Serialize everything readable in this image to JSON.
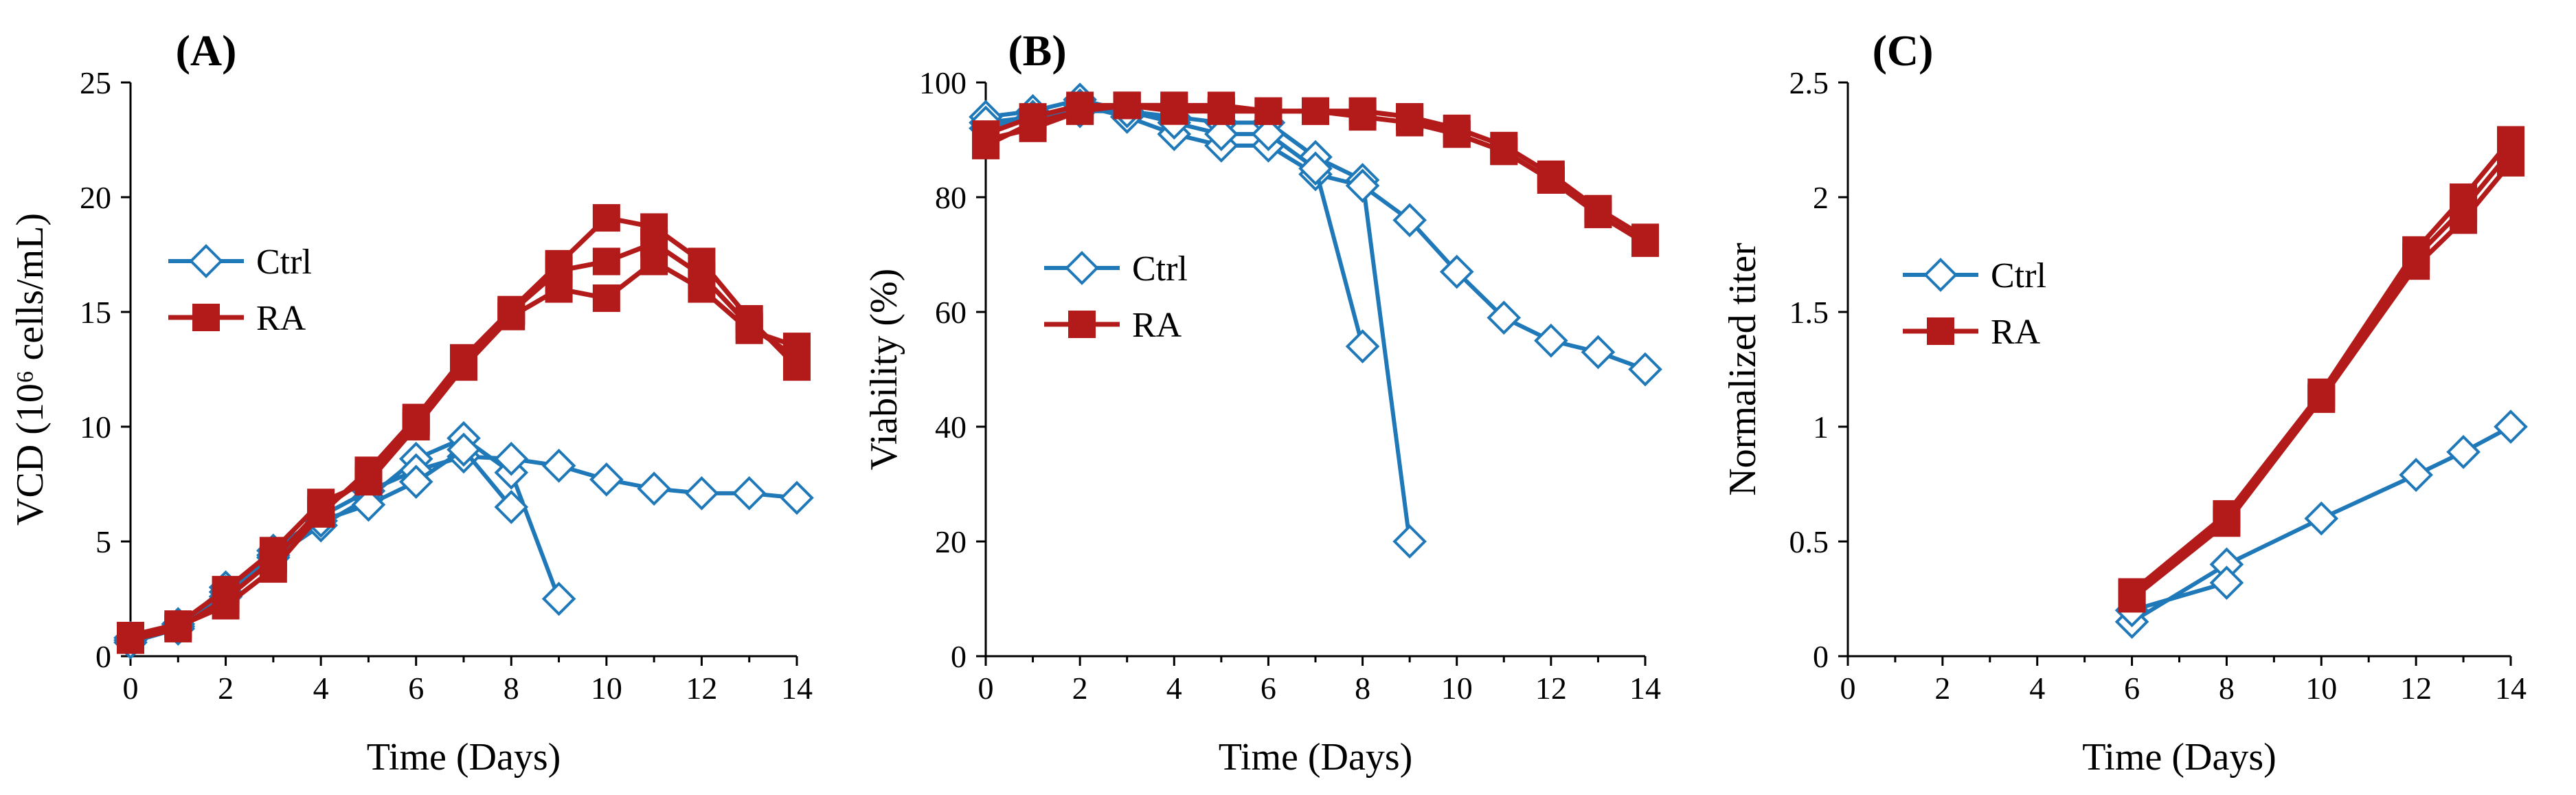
{
  "colors": {
    "ctrl": "#1f78b8",
    "ra": "#b31b1b",
    "axis": "#000000"
  },
  "chart_data": [
    {
      "type": "line",
      "title": "(A)",
      "xlabel": "Time (Days)",
      "ylabel": "VCD (10⁶ cells/mL)",
      "xlim": [
        0,
        14
      ],
      "ylim": [
        0,
        25
      ],
      "xticks": [
        0,
        2,
        4,
        6,
        8,
        10,
        12,
        14
      ],
      "yticks": [
        0,
        5,
        10,
        15,
        20,
        25
      ],
      "minor_x": true,
      "legend": [
        "Ctrl",
        "RA"
      ],
      "legend_position": "left-middle",
      "series": [
        {
          "name": "Ctrl",
          "color_key": "ctrl",
          "marker": "diamond",
          "x": [
            0,
            1,
            2,
            3,
            4,
            5,
            6,
            7,
            8,
            9
          ],
          "y": [
            0.7,
            1.3,
            3.0,
            4.3,
            5.7,
            6.9,
            8.6,
            9.5,
            8.0,
            2.5
          ]
        },
        {
          "name": "Ctrl",
          "color_key": "ctrl",
          "marker": "diamond",
          "x": [
            0,
            1,
            2,
            3,
            4,
            5,
            6,
            7,
            8,
            9,
            10,
            11,
            12,
            13,
            14
          ],
          "y": [
            0.8,
            1.4,
            2.6,
            4.6,
            6.1,
            7.2,
            8.1,
            8.7,
            8.6,
            8.3,
            7.7,
            7.3,
            7.1,
            7.1,
            6.9
          ]
        },
        {
          "name": "Ctrl",
          "color_key": "ctrl",
          "marker": "diamond",
          "x": [
            0,
            1,
            2,
            3,
            4,
            5,
            6,
            7,
            8
          ],
          "y": [
            0.6,
            1.2,
            2.8,
            4.4,
            5.9,
            6.6,
            7.6,
            9.0,
            6.5
          ]
        },
        {
          "name": "RA",
          "color_key": "ra",
          "marker": "square",
          "x": [
            0,
            1,
            2,
            3,
            4,
            5,
            6,
            7,
            8,
            9,
            10,
            11,
            12,
            13,
            14
          ],
          "y": [
            0.8,
            1.3,
            2.2,
            3.8,
            6.2,
            8.1,
            10.4,
            13.0,
            15.1,
            17.1,
            19.1,
            18.7,
            17.2,
            14.7,
            12.6
          ]
        },
        {
          "name": "RA",
          "color_key": "ra",
          "marker": "square",
          "x": [
            0,
            1,
            2,
            3,
            4,
            5,
            6,
            7,
            8,
            9,
            10,
            11,
            12,
            13,
            14
          ],
          "y": [
            0.9,
            1.4,
            2.9,
            4.6,
            6.7,
            7.6,
            10.0,
            12.6,
            14.8,
            16.0,
            15.6,
            17.2,
            16.0,
            14.2,
            13.5
          ]
        },
        {
          "name": "RA",
          "color_key": "ra",
          "marker": "square",
          "x": [
            0,
            1,
            2,
            3,
            4,
            5,
            6,
            7,
            8,
            9,
            10,
            11,
            12,
            13,
            14
          ],
          "y": [
            0.7,
            1.2,
            2.5,
            4.2,
            6.4,
            7.8,
            10.2,
            12.8,
            15.0,
            16.8,
            17.2,
            18.0,
            16.6,
            14.4,
            13.0
          ]
        }
      ]
    },
    {
      "type": "line",
      "title": "(B)",
      "xlabel": "Time (Days)",
      "ylabel": "Viability (%)",
      "xlim": [
        0,
        14
      ],
      "ylim": [
        0,
        100
      ],
      "xticks": [
        0,
        2,
        4,
        6,
        8,
        10,
        12,
        14
      ],
      "yticks": [
        0,
        20,
        40,
        60,
        80,
        100
      ],
      "minor_x": true,
      "legend": [
        "Ctrl",
        "RA"
      ],
      "legend_position": "left-middle",
      "series": [
        {
          "name": "Ctrl",
          "color_key": "ctrl",
          "marker": "diamond",
          "x": [
            0,
            1,
            2,
            3,
            4,
            5,
            6,
            7,
            8,
            9
          ],
          "y": [
            94,
            95,
            97,
            95,
            94,
            93,
            93,
            87,
            83,
            20
          ]
        },
        {
          "name": "Ctrl",
          "color_key": "ctrl",
          "marker": "diamond",
          "x": [
            0,
            1,
            2,
            3,
            4,
            5,
            6,
            7,
            8,
            9,
            10,
            11,
            12,
            13,
            14
          ],
          "y": [
            92,
            94,
            96,
            94,
            91,
            89,
            89,
            84,
            82,
            76,
            67,
            59,
            55,
            53,
            50
          ]
        },
        {
          "name": "Ctrl",
          "color_key": "ctrl",
          "marker": "diamond",
          "x": [
            0,
            1,
            2,
            3,
            4,
            5,
            6,
            7,
            8
          ],
          "y": [
            93,
            94,
            95,
            95,
            93,
            91,
            91,
            85,
            54
          ]
        },
        {
          "name": "RA",
          "color_key": "ra",
          "marker": "square",
          "x": [
            0,
            1,
            2,
            3,
            4,
            5,
            6,
            7,
            8,
            9,
            10,
            11,
            12,
            13,
            14
          ],
          "y": [
            90,
            92,
            95,
            96,
            96,
            95,
            95,
            95,
            95,
            94,
            91,
            88,
            83,
            77,
            72
          ]
        },
        {
          "name": "RA",
          "color_key": "ra",
          "marker": "square",
          "x": [
            0,
            1,
            2,
            3,
            4,
            5,
            6,
            7,
            8,
            9,
            10,
            11,
            12,
            13,
            14
          ],
          "y": [
            91,
            94,
            96,
            96,
            95,
            95,
            95,
            95,
            95,
            94,
            92,
            89,
            84,
            78,
            73
          ]
        },
        {
          "name": "RA",
          "color_key": "ra",
          "marker": "square",
          "x": [
            0,
            1,
            2,
            3,
            4,
            5,
            6,
            7,
            8,
            9,
            10,
            11,
            12,
            13,
            14
          ],
          "y": [
            89,
            93,
            95,
            96,
            96,
            96,
            95,
            95,
            94,
            93,
            91,
            88,
            83,
            77,
            72
          ]
        }
      ]
    },
    {
      "type": "line",
      "title": "(C)",
      "xlabel": "Time (Days)",
      "ylabel": "Normalized titer",
      "xlim": [
        0,
        14
      ],
      "ylim": [
        0,
        2.5
      ],
      "xticks": [
        0,
        2,
        4,
        6,
        8,
        10,
        12,
        14
      ],
      "yticks": [
        0,
        0.5,
        1,
        1.5,
        2,
        2.5
      ],
      "minor_x": true,
      "legend": [
        "Ctrl",
        "RA"
      ],
      "legend_position": "left-middle",
      "series": [
        {
          "name": "Ctrl",
          "color_key": "ctrl",
          "marker": "diamond",
          "x": [
            6,
            8,
            10,
            12,
            13,
            14
          ],
          "y": [
            0.15,
            0.4,
            0.6,
            0.79,
            0.89,
            1.0
          ]
        },
        {
          "name": "Ctrl",
          "color_key": "ctrl",
          "marker": "diamond",
          "x": [
            6,
            8
          ],
          "y": [
            0.2,
            0.32
          ]
        },
        {
          "name": "RA",
          "color_key": "ra",
          "marker": "square",
          "x": [
            6,
            8,
            10,
            12,
            13,
            14
          ],
          "y": [
            0.25,
            0.58,
            1.12,
            1.7,
            1.9,
            2.15
          ]
        },
        {
          "name": "RA",
          "color_key": "ra",
          "marker": "square",
          "x": [
            6,
            8,
            10,
            12,
            13,
            14
          ],
          "y": [
            0.28,
            0.62,
            1.15,
            1.77,
            2.0,
            2.25
          ]
        },
        {
          "name": "RA",
          "color_key": "ra",
          "marker": "square",
          "x": [
            6,
            8,
            10,
            12,
            13,
            14
          ],
          "y": [
            0.27,
            0.6,
            1.13,
            1.74,
            1.95,
            2.2
          ]
        }
      ]
    }
  ]
}
